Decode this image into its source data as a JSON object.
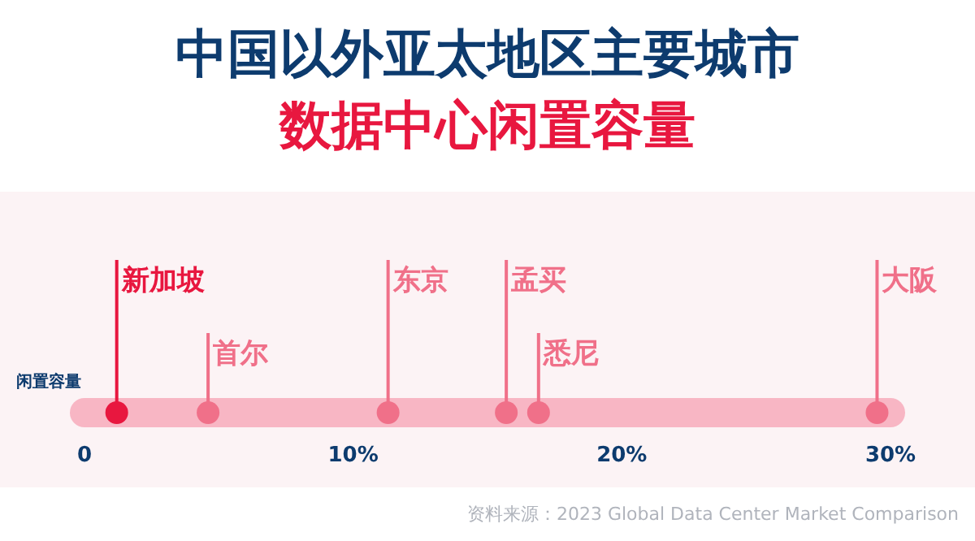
{
  "chart_data": {
    "type": "scatter",
    "orientation": "horizontal",
    "title": "中国以外亚太地区主要城市",
    "subtitle": "数据中心闲置容量",
    "categories": [
      "闲置容量"
    ],
    "series": [
      {
        "name": "新加坡",
        "color": "#e8173f",
        "values": [
          1.2
        ]
      },
      {
        "name": "首尔",
        "color": "#f07089",
        "values": [
          4.6
        ]
      },
      {
        "name": "东京",
        "color": "#f07089",
        "values": [
          11.3
        ]
      },
      {
        "name": "孟买",
        "color": "#f07089",
        "values": [
          15.7
        ]
      },
      {
        "name": "悉尼",
        "color": "#f07089",
        "values": [
          16.9
        ]
      },
      {
        "name": "大阪",
        "color": "#f07089",
        "values": [
          29.5
        ]
      }
    ],
    "xlim": [
      0,
      30
    ],
    "xticks": [
      {
        "value": 0,
        "label": "0"
      },
      {
        "value": 10,
        "label": "10%"
      },
      {
        "value": 20,
        "label": "20%"
      },
      {
        "value": 30,
        "label": "30%"
      }
    ],
    "marker": "circle",
    "annotations": [
      "资料来源：2023 Global Data Center Market Comparison"
    ]
  }
}
